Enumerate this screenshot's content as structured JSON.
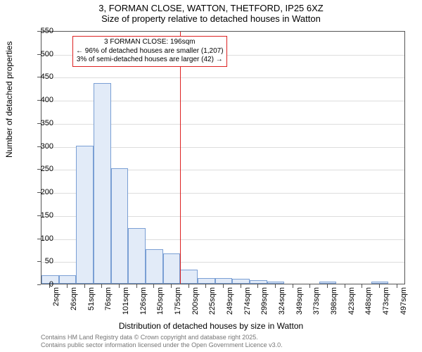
{
  "titles": {
    "line1": "3, FORMAN CLOSE, WATTON, THETFORD, IP25 6XZ",
    "line2": "Size of property relative to detached houses in Watton"
  },
  "chart": {
    "type": "histogram",
    "y_axis_label": "Number of detached properties",
    "x_axis_label": "Distribution of detached houses by size in Watton",
    "ylim": [
      0,
      550
    ],
    "ytick_step": 50,
    "yticks": [
      0,
      50,
      100,
      150,
      200,
      250,
      300,
      350,
      400,
      450,
      500,
      550
    ],
    "xticks": [
      "2sqm",
      "26sqm",
      "51sqm",
      "76sqm",
      "101sqm",
      "126sqm",
      "150sqm",
      "175sqm",
      "200sqm",
      "225sqm",
      "249sqm",
      "274sqm",
      "299sqm",
      "324sqm",
      "349sqm",
      "373sqm",
      "398sqm",
      "423sqm",
      "448sqm",
      "473sqm",
      "497sqm"
    ],
    "values": [
      18,
      18,
      300,
      435,
      250,
      120,
      75,
      65,
      30,
      12,
      12,
      10,
      8,
      5,
      0,
      0,
      5,
      0,
      0,
      5,
      0
    ],
    "bar_fill": "#e2ebf8",
    "bar_border": "#7a9fd4",
    "grid_color": "#dddddd",
    "axis_color": "#555555",
    "bg": "#ffffff",
    "label_fontsize": 12,
    "tick_fontsize": 11,
    "title_fontsize": 13,
    "reference_line": {
      "x_index": 8,
      "color": "#dd2222"
    },
    "annotation": {
      "line1": "3 FORMAN CLOSE: 196sqm",
      "line2": "← 96% of detached houses are smaller (1,207)",
      "line3": "3% of semi-detached houses are larger (42) →",
      "border_color": "#dd2222",
      "bg": "#ffffff"
    }
  },
  "footer": {
    "line1": "Contains HM Land Registry data © Crown copyright and database right 2025.",
    "line2": "Contains public sector information licensed under the Open Government Licence v3.0."
  }
}
